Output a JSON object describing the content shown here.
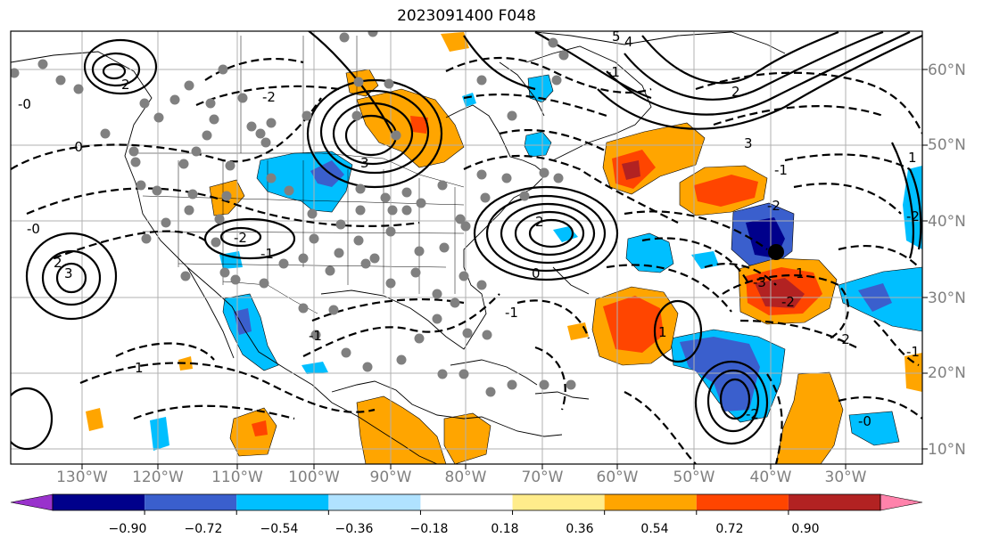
{
  "title": "2023091400 F048",
  "map": {
    "longitude_labels": [
      "130°W",
      "120°W",
      "110°W",
      "100°W",
      "90°W",
      "80°W",
      "70°W",
      "60°W",
      "50°W",
      "40°W",
      "30°W"
    ],
    "latitude_labels": [
      "60°N",
      "50°N",
      "40°N",
      "30°N",
      "20°N",
      "10°N"
    ],
    "contour_labels": [
      "-2",
      "-2",
      "-1",
      "-0",
      "2",
      "2",
      "3",
      "3",
      "-2",
      "-1",
      "1",
      "2",
      "1",
      "-1",
      "-0",
      "4",
      "5",
      "-0",
      "-1",
      "-2",
      "3",
      "2",
      "-2",
      "-3",
      "-1",
      "-2",
      "0",
      "-0",
      "1",
      "-1",
      "1",
      "-2"
    ]
  },
  "colorbar": {
    "ticks": [
      "−0.90",
      "−0.72",
      "−0.54",
      "−0.36",
      "−0.18",
      "0.18",
      "0.36",
      "0.54",
      "0.72",
      "0.90"
    ],
    "colors": [
      "#9932cc",
      "#00008b",
      "#3a5fcd",
      "#00bfff",
      "#b0e2ff",
      "#ffffff",
      "#ffec8b",
      "#ffa500",
      "#ff4500",
      "#b22222",
      "#ff82ab"
    ]
  }
}
